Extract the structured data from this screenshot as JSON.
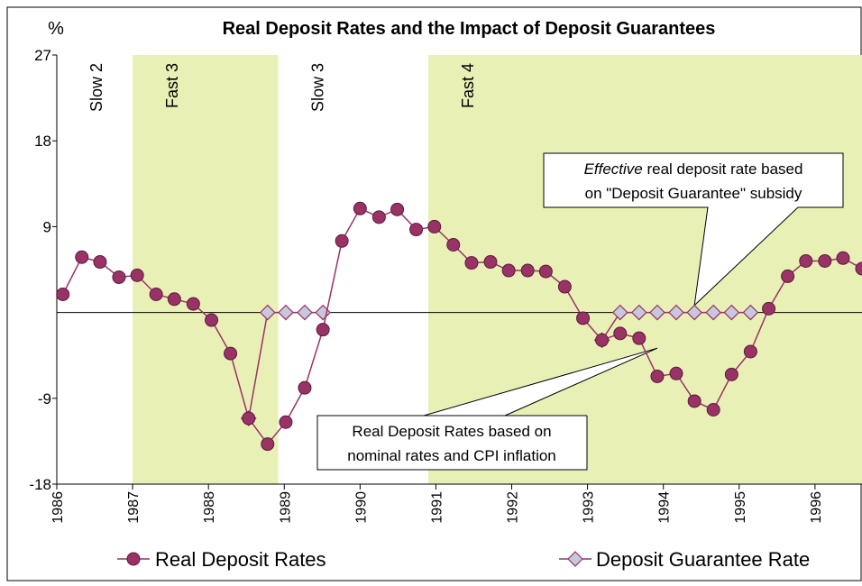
{
  "chart_data": {
    "type": "line",
    "title": "Real Deposit Rates and the Impact of Deposit Guarantees",
    "y_label": "%",
    "x": [
      1986.08,
      1986.33,
      1986.57,
      1986.82,
      1987.06,
      1987.31,
      1987.55,
      1987.8,
      1988.04,
      1988.29,
      1988.53,
      1988.78,
      1989.02,
      1989.27,
      1989.51,
      1989.76,
      1990.0,
      1990.25,
      1990.49,
      1990.74,
      1990.98,
      1991.23,
      1991.47,
      1991.72,
      1991.96,
      1992.21,
      1992.45,
      1992.7,
      1992.94,
      1993.19,
      1993.43,
      1993.68,
      1993.92,
      1994.17,
      1994.41,
      1994.66,
      1994.9,
      1995.15,
      1995.39,
      1995.64,
      1995.88,
      1996.13,
      1996.37,
      1996.62
    ],
    "series": [
      {
        "name": "Deposit Guarantee Rate",
        "color": "#993366",
        "marker_fill": "#c8c8dc",
        "marker": "diamond",
        "values": [
          null,
          null,
          null,
          null,
          null,
          null,
          null,
          null,
          null,
          null,
          -11.1,
          0,
          0,
          0,
          0,
          null,
          null,
          null,
          null,
          null,
          null,
          null,
          null,
          null,
          null,
          null,
          null,
          null,
          null,
          -2.9,
          0,
          0,
          0,
          0,
          0,
          0,
          0,
          0,
          null,
          null,
          null,
          null,
          null,
          null
        ]
      },
      {
        "name": "Real Deposit Rates",
        "color": "#993366",
        "marker_fill": "#993366",
        "marker": "circle",
        "values": [
          1.9,
          5.8,
          5.3,
          3.7,
          3.9,
          1.9,
          1.4,
          0.9,
          -0.8,
          -4.3,
          -11.1,
          -13.8,
          -11.5,
          -7.9,
          -1.8,
          7.5,
          10.9,
          10.0,
          10.8,
          8.7,
          9.0,
          7.1,
          5.2,
          5.3,
          4.4,
          4.4,
          4.3,
          2.7,
          -0.6,
          -2.9,
          -2.2,
          -2.7,
          -6.7,
          -6.4,
          -9.3,
          -10.2,
          -6.5,
          -4.1,
          0.4,
          3.8,
          5.4,
          5.4,
          5.7,
          4.6
        ]
      }
    ],
    "xlim": [
      1986,
      1996.62
    ],
    "xticks": [
      1986,
      1987,
      1988,
      1989,
      1990,
      1991,
      1992,
      1993,
      1994,
      1995,
      1996
    ],
    "ylim": [
      -18,
      27
    ],
    "yticks": [
      -18,
      -9,
      9,
      18,
      27
    ],
    "phases": [
      {
        "label": "Slow 2",
        "start": 1986,
        "end": 1987,
        "shaded": false
      },
      {
        "label": "Fast 3",
        "start": 1987,
        "end": 1988.92,
        "shaded": true
      },
      {
        "label": "Slow 3",
        "start": 1988.92,
        "end": 1990.9,
        "shaded": false
      },
      {
        "label": "Fast 4",
        "start": 1990.9,
        "end": 1996.62,
        "shaded": true
      }
    ],
    "shade_color": "#e8f0b6",
    "annotations": [
      {
        "italic": "Effective",
        "rest": " real deposit rate based",
        "line2": "on \"Deposit Guarantee\" subsidy",
        "point_x": 1994.41,
        "point_y": 0
      },
      {
        "line1": "Real Deposit Rates based on",
        "line2": "nominal rates and CPI inflation",
        "point_x": 1993.92,
        "point_y": -4.5
      }
    ],
    "legend": "bottom"
  }
}
